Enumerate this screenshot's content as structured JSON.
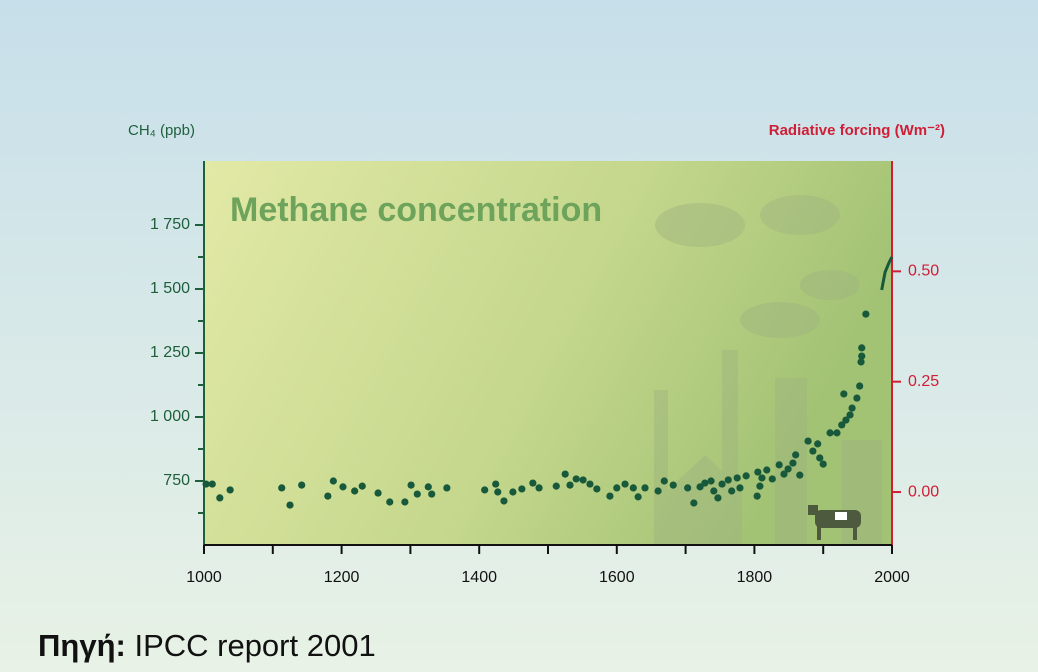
{
  "chart_data": {
    "type": "scatter",
    "title": "Methane concentration",
    "ylabel": "CH₄ (ppb)",
    "y2label": "Radiative forcing (Wm⁻²)",
    "xlim": [
      1000,
      2000
    ],
    "xticks": [
      1000,
      1200,
      1400,
      1600,
      1800,
      2000
    ],
    "x_minor_ticks": [
      1100,
      1300,
      1500,
      1700,
      1900
    ],
    "ylim": [
      500,
      2000
    ],
    "yticks": [
      750,
      {
        "value": 1000,
        "label": "1 000"
      },
      {
        "value": 1250,
        "label": "1 250"
      },
      {
        "value": 1500,
        "label": "1 500"
      },
      {
        "value": 1750,
        "label": "1 750"
      }
    ],
    "y_minor_ticks": [
      625,
      875,
      1125,
      1375,
      1625
    ],
    "y2lim": [
      -0.12,
      0.75
    ],
    "y2ticks": [
      {
        "value": 0,
        "label": "0.00"
      },
      {
        "value": 0.25,
        "label": "0.25"
      },
      {
        "value": 0.5,
        "label": "0.50"
      }
    ],
    "series": [
      {
        "type": "scatter",
        "color": "#17593a",
        "x": [
          1003,
          1012,
          1023,
          1038,
          1113,
          1125,
          1142,
          1180,
          1188,
          1202,
          1219,
          1230,
          1253,
          1270,
          1292,
          1301,
          1310,
          1326,
          1331,
          1353,
          1408,
          1424,
          1427,
          1436,
          1449,
          1462,
          1478,
          1487,
          1512,
          1525,
          1532,
          1541,
          1551,
          1561,
          1571,
          1590,
          1600,
          1612,
          1624,
          1631,
          1641,
          1660,
          1669,
          1682,
          1703,
          1712,
          1721,
          1728,
          1737,
          1741,
          1747,
          1753,
          1762,
          1767,
          1775,
          1779,
          1788,
          1804,
          1805,
          1808,
          1811,
          1818,
          1826,
          1836,
          1843,
          1849,
          1856,
          1860,
          1866,
          1878,
          1885,
          1892,
          1895,
          1900,
          1910,
          1920,
          1927,
          1930,
          1933,
          1939,
          1942,
          1949,
          1953,
          1955,
          1956,
          1956,
          1962
        ],
        "values": [
          738,
          738,
          684,
          715,
          723,
          656,
          734,
          691,
          750,
          727,
          711,
          730,
          703,
          668,
          668,
          734,
          699,
          727,
          699,
          723,
          715,
          738,
          707,
          672,
          707,
          719,
          742,
          723,
          730,
          777,
          734,
          758,
          754,
          738,
          719,
          691,
          723,
          738,
          723,
          688,
          723,
          711,
          750,
          734,
          723,
          664,
          727,
          742,
          750,
          711,
          684,
          738,
          754,
          711,
          762,
          723,
          770,
          691,
          785,
          730,
          762,
          793,
          758,
          813,
          777,
          797,
          820,
          852,
          773,
          906,
          867,
          895,
          840,
          816,
          938,
          938,
          969,
          1090,
          988,
          1008,
          1035,
          1074,
          1121,
          1215,
          1238,
          1270,
          1402
        ]
      },
      {
        "type": "line",
        "color": "#17593a",
        "x": [
          1985,
          1990,
          1996,
          2000
        ],
        "values": [
          1496,
          1566,
          1605,
          1625
        ]
      }
    ]
  },
  "caption": {
    "label": "Πηγή:",
    "text": "IPCC report 2001"
  }
}
